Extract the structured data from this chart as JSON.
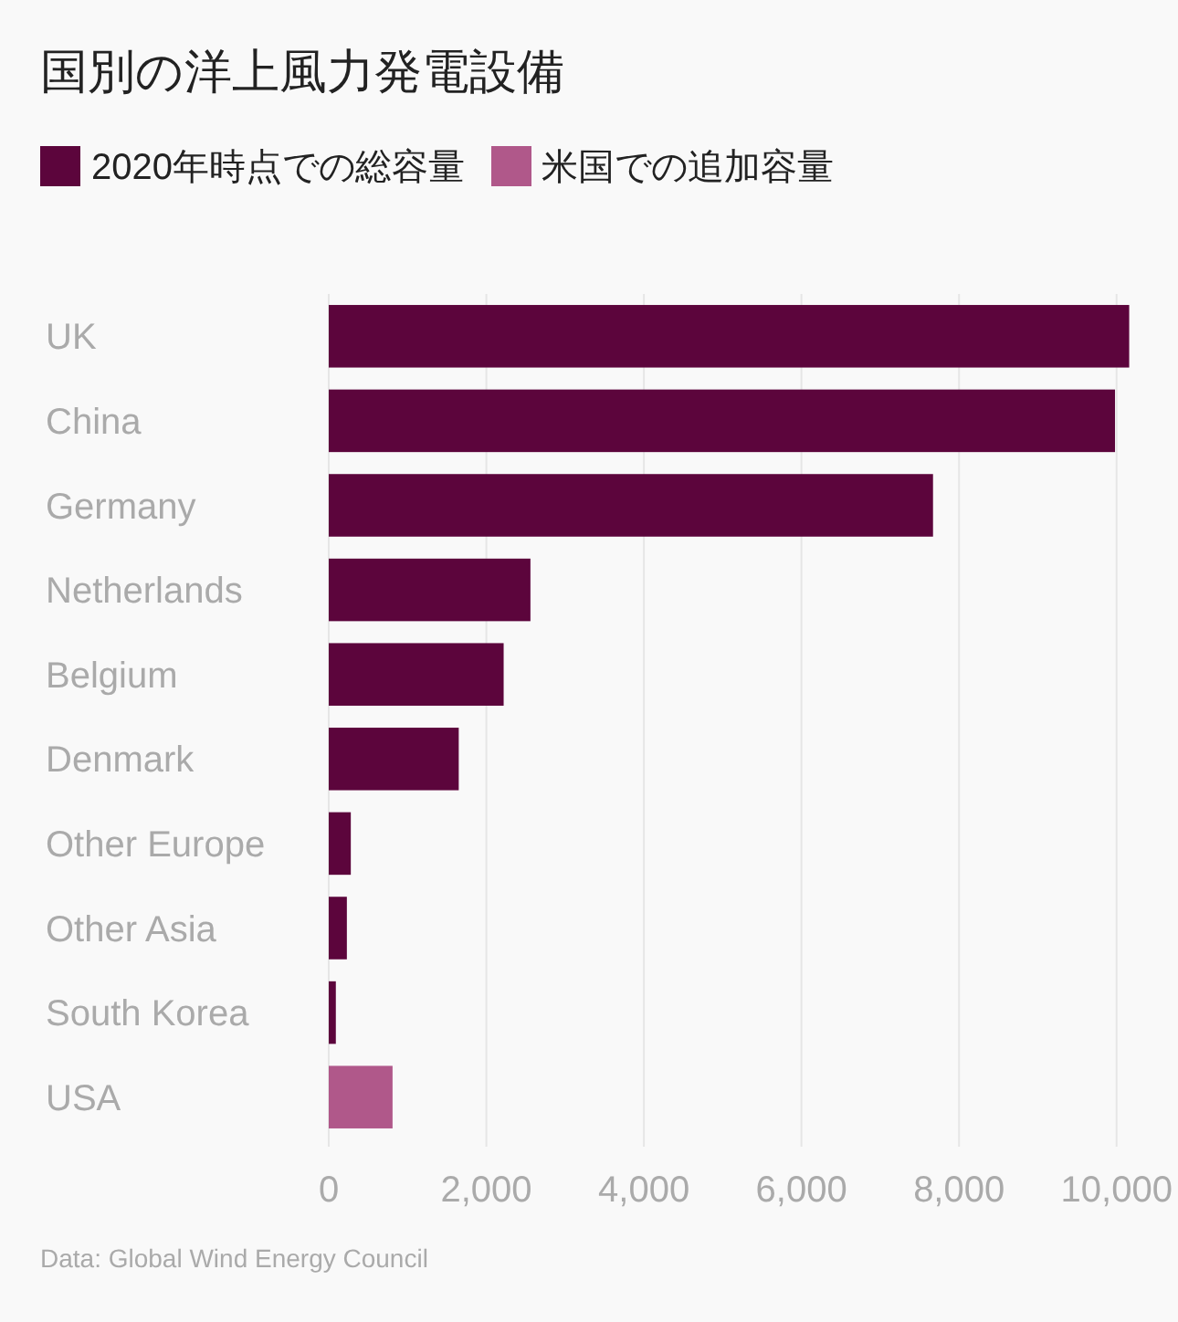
{
  "chart_data": {
    "type": "bar",
    "orientation": "horizontal",
    "title": "国別の洋上風力発電設備",
    "categories": [
      "UK",
      "China",
      "Germany",
      "Netherlands",
      "Belgium",
      "Denmark",
      "Other Europe",
      "Other Asia",
      "South Korea",
      "USA"
    ],
    "series": [
      {
        "name": "2020年時点での総容量",
        "color": "#5c053c",
        "values": [
          10160,
          9980,
          7670,
          2560,
          2220,
          1650,
          280,
          230,
          90,
          null
        ]
      },
      {
        "name": "米国での追加容量",
        "color": "#b0588a",
        "values": [
          null,
          null,
          null,
          null,
          null,
          null,
          null,
          null,
          null,
          810
        ]
      }
    ],
    "xlim": [
      0,
      10200
    ],
    "xticks": [
      0,
      {
        "value": 2000,
        "label": "2,000"
      },
      {
        "value": 4000,
        "label": "4,000"
      },
      {
        "value": 6000,
        "label": "6,000"
      },
      {
        "value": 8000,
        "label": "8,000"
      },
      {
        "value": 10000,
        "label": "10,000"
      }
    ],
    "grid": "x",
    "legend": "top",
    "annotations": [
      "Data: Global Wind Energy Council"
    ]
  }
}
